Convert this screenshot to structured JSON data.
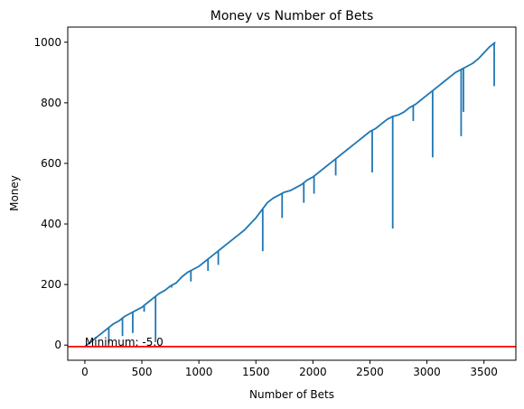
{
  "chart_data": {
    "type": "line",
    "title": "Money vs Number of Bets",
    "xlabel": "Number of Bets",
    "ylabel": "Money",
    "xlim": [
      -150,
      3780
    ],
    "ylim": [
      -50,
      1050
    ],
    "xticks": [
      0,
      500,
      1000,
      1500,
      2000,
      2500,
      3000,
      3500
    ],
    "yticks": [
      0,
      200,
      400,
      600,
      800,
      1000
    ],
    "grid": false,
    "series": [
      {
        "color": "#1f77b4",
        "x": [
          0,
          50,
          100,
          150,
          200,
          250,
          300,
          350,
          400,
          450,
          500,
          550,
          600,
          650,
          700,
          750,
          800,
          850,
          900,
          950,
          1000,
          1050,
          1100,
          1150,
          1200,
          1250,
          1300,
          1350,
          1400,
          1450,
          1500,
          1550,
          1600,
          1650,
          1700,
          1750,
          1800,
          1850,
          1900,
          1950,
          2000,
          2050,
          2100,
          2150,
          2200,
          2250,
          2300,
          2350,
          2400,
          2450,
          2500,
          2550,
          2600,
          2650,
          2700,
          2750,
          2800,
          2850,
          2900,
          2950,
          3000,
          3050,
          3100,
          3150,
          3200,
          3250,
          3300,
          3350,
          3400,
          3450,
          3500,
          3550,
          3600
        ],
        "values": [
          -5,
          10,
          25,
          40,
          55,
          70,
          80,
          95,
          105,
          115,
          125,
          140,
          155,
          170,
          180,
          195,
          205,
          225,
          240,
          250,
          260,
          275,
          290,
          305,
          320,
          335,
          350,
          365,
          380,
          400,
          420,
          445,
          470,
          485,
          495,
          505,
          510,
          520,
          530,
          545,
          555,
          570,
          585,
          600,
          615,
          630,
          645,
          660,
          675,
          690,
          705,
          715,
          730,
          745,
          755,
          760,
          770,
          785,
          795,
          810,
          825,
          840,
          855,
          870,
          885,
          900,
          910,
          920,
          930,
          945,
          965,
          985,
          1000
        ]
      }
    ],
    "spikes": [
      {
        "x": 210,
        "y": 5
      },
      {
        "x": 330,
        "y": 30
      },
      {
        "x": 420,
        "y": 40
      },
      {
        "x": 520,
        "y": 110
      },
      {
        "x": 620,
        "y": 10
      },
      {
        "x": 760,
        "y": 190
      },
      {
        "x": 930,
        "y": 210
      },
      {
        "x": 1080,
        "y": 245
      },
      {
        "x": 1170,
        "y": 265
      },
      {
        "x": 1560,
        "y": 310
      },
      {
        "x": 1730,
        "y": 420
      },
      {
        "x": 1920,
        "y": 470
      },
      {
        "x": 2010,
        "y": 500
      },
      {
        "x": 2200,
        "y": 560
      },
      {
        "x": 2520,
        "y": 570
      },
      {
        "x": 2700,
        "y": 385
      },
      {
        "x": 2880,
        "y": 740
      },
      {
        "x": 3050,
        "y": 620
      },
      {
        "x": 3300,
        "y": 690
      },
      {
        "x": 3320,
        "y": 770
      },
      {
        "x": 3590,
        "y": 855
      }
    ],
    "hline": {
      "y": -5,
      "color": "#ff0000"
    },
    "annotation": {
      "text": "Minimum: -5.0",
      "x": 0,
      "y": -5
    }
  }
}
